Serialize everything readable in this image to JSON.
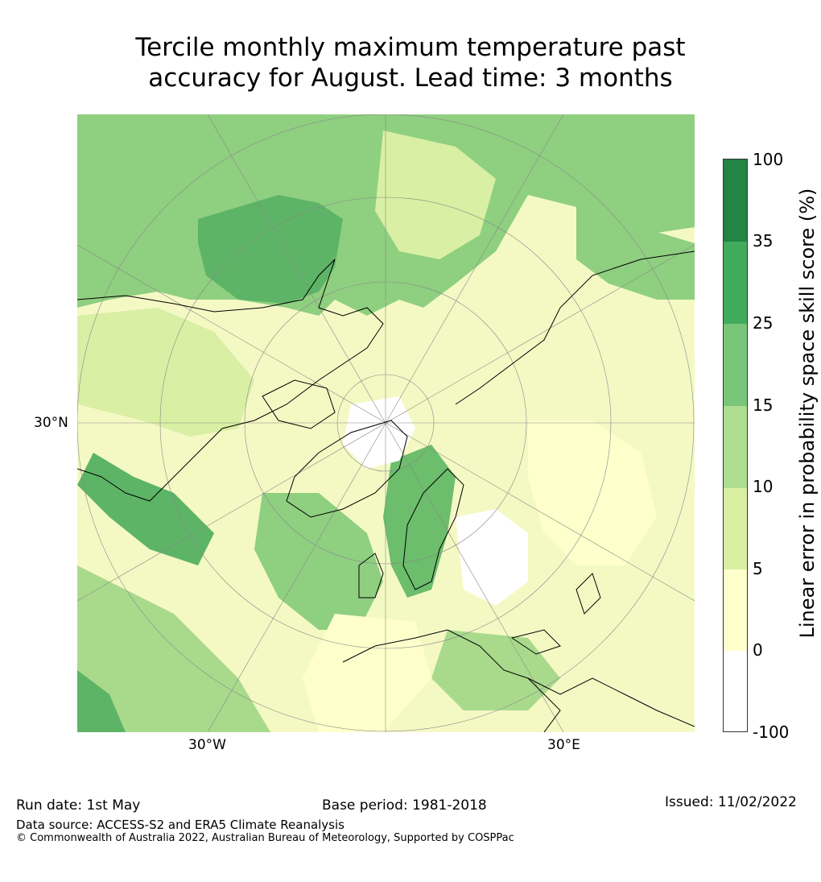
{
  "title_line1": "Tercile monthly maximum temperature past",
  "title_line2": "accuracy for August. Lead time: 3 months",
  "map": {
    "lat_label": "30°N",
    "lon_labels": [
      "30°W",
      "30°E"
    ]
  },
  "colorbar": {
    "label": "Linear error in probability space skill score (%)",
    "ticks": [
      "100",
      "35",
      "25",
      "15",
      "10",
      "5",
      "0",
      "-100"
    ],
    "colors": [
      "#238443",
      "#41ab5d",
      "#78c679",
      "#addd8e",
      "#d9f0a3",
      "#ffffcc",
      "#ffffff"
    ]
  },
  "footer": {
    "run_date": "Run date: 1st May",
    "base_period": "Base period: 1981-2018",
    "issued": "Issued: 11/02/2022",
    "data_source": "Data source: ACCESS-S2 and ERA5 Climate Reanalysis",
    "copyright": "© Commonwealth of Australia 2022, Australian Bureau of Meteorology, Supported by COSPPac"
  }
}
